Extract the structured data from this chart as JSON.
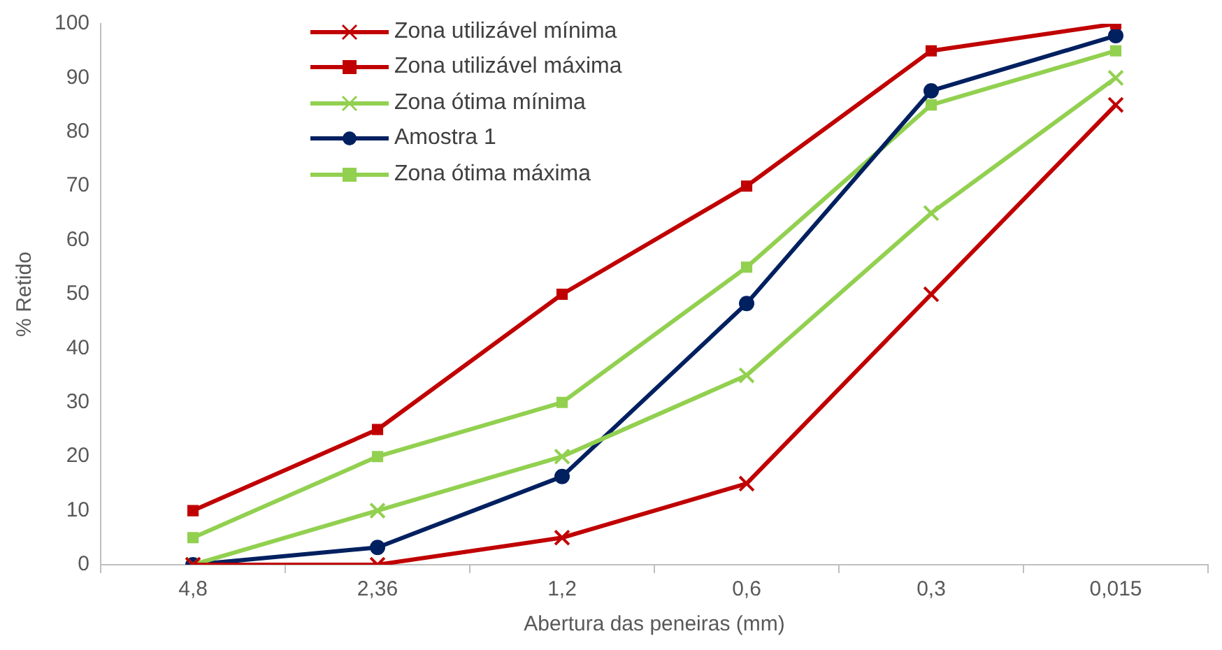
{
  "chart_data": {
    "type": "line",
    "xlabel": "Abertura das peneiras (mm)",
    "ylabel": "% Retido",
    "categories": [
      "4,8",
      "2,36",
      "1,2",
      "0,6",
      "0,3",
      "0,015"
    ],
    "ylim": [
      0,
      100
    ],
    "yticks": [
      0,
      10,
      20,
      30,
      40,
      50,
      60,
      70,
      80,
      90,
      100
    ],
    "grid": false,
    "legend": "top left",
    "line_style": "solid",
    "series": [
      {
        "name": "Zona utilizável mínima",
        "color": "#c00000",
        "marker": "cross",
        "values": [
          0,
          0,
          5,
          15,
          50,
          85
        ]
      },
      {
        "name": "Zona utilizável máxima",
        "color": "#c00000",
        "marker": "square",
        "values": [
          10,
          25,
          50,
          70,
          95,
          100
        ]
      },
      {
        "name": "Zona ótima mínima",
        "color": "#92d050",
        "marker": "cross",
        "values": [
          0,
          10,
          20,
          35,
          65,
          90
        ]
      },
      {
        "name": "Amostra 1",
        "color": "#002060",
        "marker": "circle",
        "values": [
          0,
          3.2,
          16.3,
          48.3,
          87.6,
          97.8
        ]
      },
      {
        "name": "Zona ótima máxima",
        "color": "#92d050",
        "marker": "square",
        "values": [
          5,
          20,
          30,
          55,
          85,
          95
        ]
      }
    ]
  }
}
